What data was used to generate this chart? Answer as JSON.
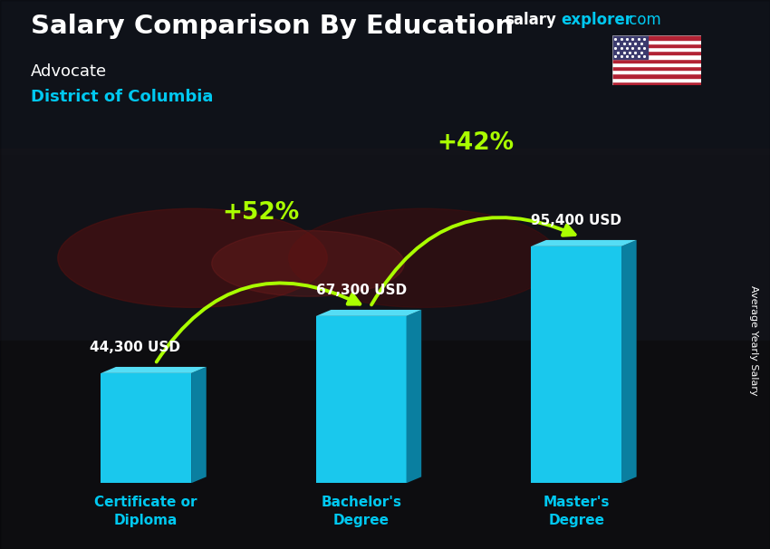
{
  "title": "Salary Comparison By Education",
  "subtitle": "Advocate",
  "location": "District of Columbia",
  "categories": [
    "Certificate or\nDiploma",
    "Bachelor's\nDegree",
    "Master's\nDegree"
  ],
  "values": [
    44300,
    67300,
    95400
  ],
  "value_labels": [
    "44,300 USD",
    "67,300 USD",
    "95,400 USD"
  ],
  "bar_front_color": "#1ac8ed",
  "bar_side_color": "#0a7fa0",
  "bar_top_color": "#55ddf5",
  "bg_dark": "#1a1f2e",
  "title_color": "#ffffff",
  "subtitle_color": "#ffffff",
  "location_color": "#00c8f0",
  "value_color": "#ffffff",
  "category_color": "#00c8f0",
  "pct_labels": [
    "+52%",
    "+42%"
  ],
  "pct_color": "#aaff00",
  "watermark_salary": "salary",
  "watermark_explorer": "explorer",
  "watermark_dot_com": ".com",
  "watermark_color_salary": "#ffffff",
  "watermark_color_explorer": "#00c8f0",
  "ylabel": "Average Yearly Salary",
  "ylim": [
    0,
    115000
  ],
  "bar_positions": [
    0,
    1,
    2
  ],
  "bar_width": 0.42
}
